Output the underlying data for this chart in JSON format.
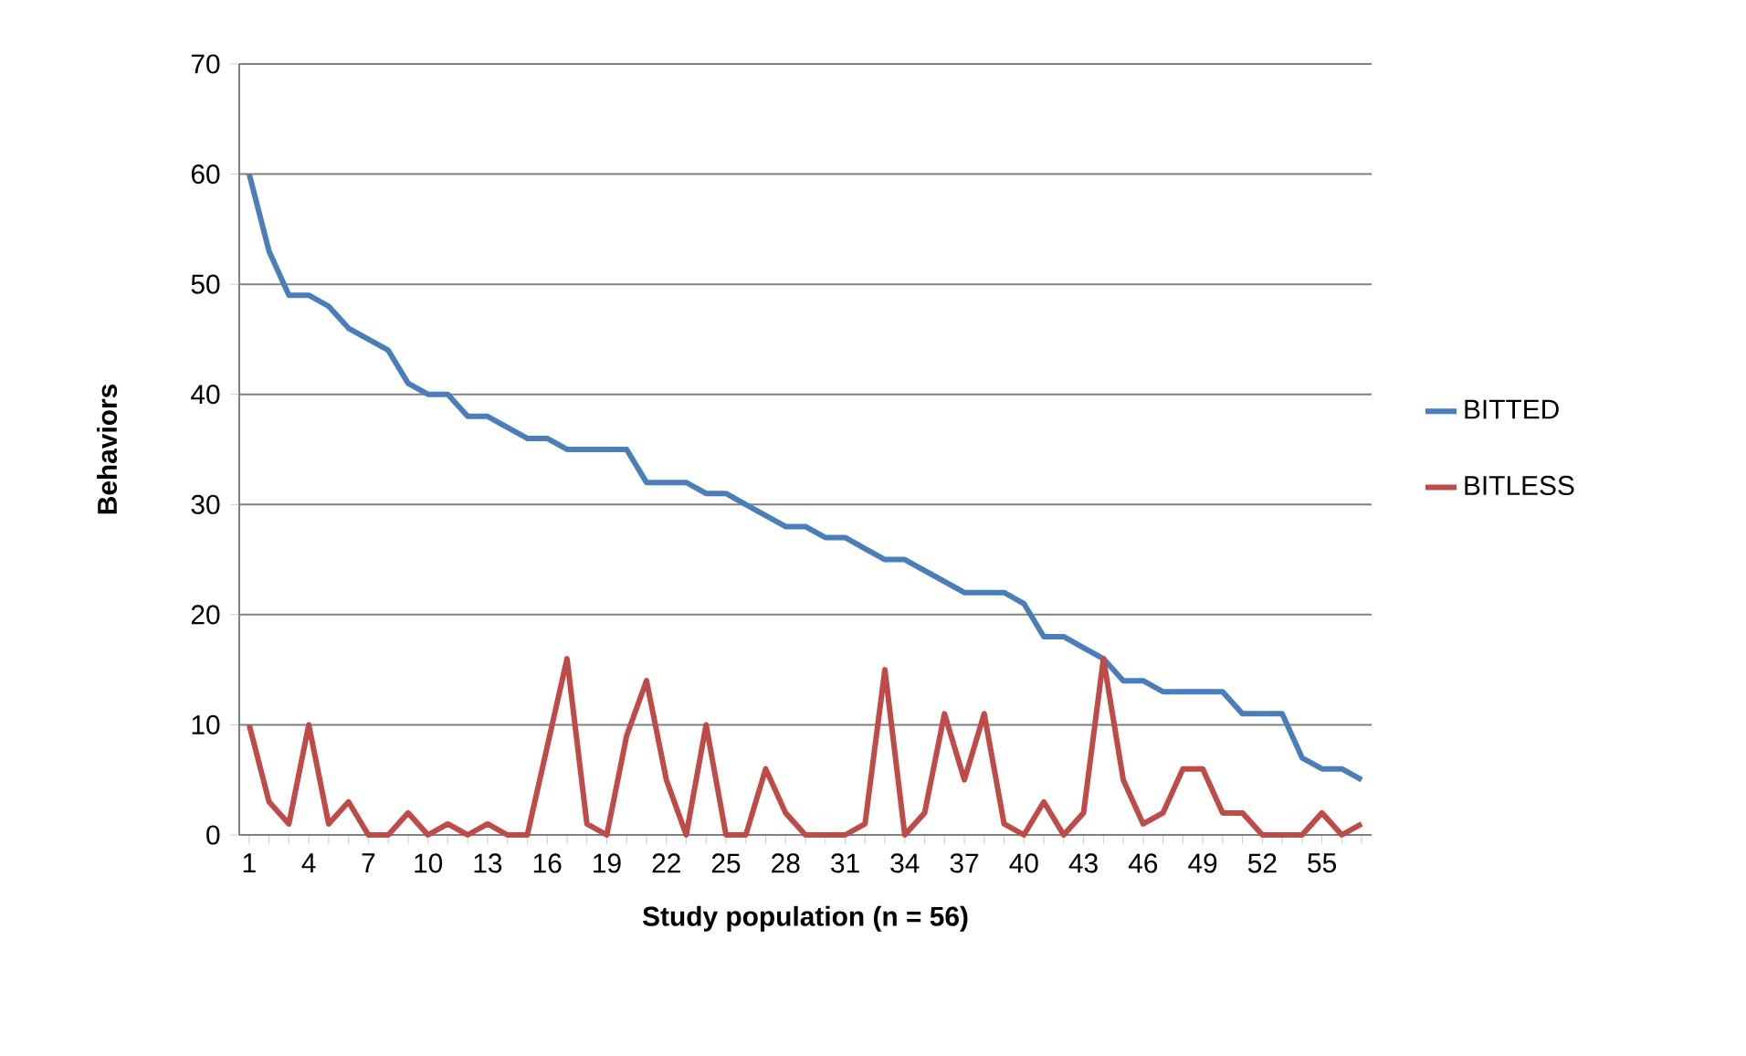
{
  "chart_data": {
    "type": "line",
    "xlabel": "Study population (n = 56)",
    "ylabel": "Behaviors",
    "categories": [
      "1",
      null,
      null,
      "4",
      null,
      null,
      "7",
      null,
      null,
      "10",
      null,
      null,
      "13",
      null,
      null,
      "16",
      null,
      null,
      "19",
      null,
      null,
      "22",
      null,
      null,
      "25",
      null,
      null,
      "28",
      null,
      null,
      "31",
      null,
      null,
      "34",
      null,
      null,
      "37",
      null,
      null,
      "40",
      null,
      null,
      "43",
      null,
      null,
      "46",
      null,
      null,
      "49",
      null,
      null,
      "52",
      null,
      null,
      "55",
      null,
      null
    ],
    "series": [
      {
        "name": "BITTED",
        "color": "#4a7ebb",
        "values": [
          60,
          53,
          49,
          49,
          48,
          46,
          45,
          44,
          41,
          40,
          40,
          38,
          38,
          37,
          36,
          36,
          35,
          35,
          35,
          35,
          32,
          32,
          32,
          31,
          31,
          30,
          29,
          28,
          28,
          27,
          27,
          26,
          25,
          25,
          24,
          23,
          22,
          22,
          22,
          21,
          18,
          18,
          17,
          16,
          14,
          14,
          13,
          13,
          13,
          13,
          11,
          11,
          11,
          7,
          6,
          6,
          5
        ]
      },
      {
        "name": "BITLESS",
        "color": "#be4b48",
        "values": [
          10,
          3,
          1,
          10,
          1,
          3,
          0,
          0,
          2,
          0,
          1,
          0,
          1,
          0,
          0,
          8,
          16,
          1,
          0,
          9,
          14,
          5,
          0,
          10,
          0,
          0,
          6,
          2,
          0,
          0,
          0,
          1,
          15,
          0,
          2,
          11,
          5,
          11,
          1,
          0,
          3,
          0,
          2,
          16,
          5,
          1,
          2,
          6,
          6,
          2,
          2,
          0,
          0,
          0,
          2,
          0,
          1
        ]
      }
    ],
    "ylim": [
      0,
      70
    ],
    "yticks": [
      0,
      10,
      20,
      30,
      40,
      50,
      60,
      70
    ],
    "grid": "y",
    "legend": "right"
  }
}
